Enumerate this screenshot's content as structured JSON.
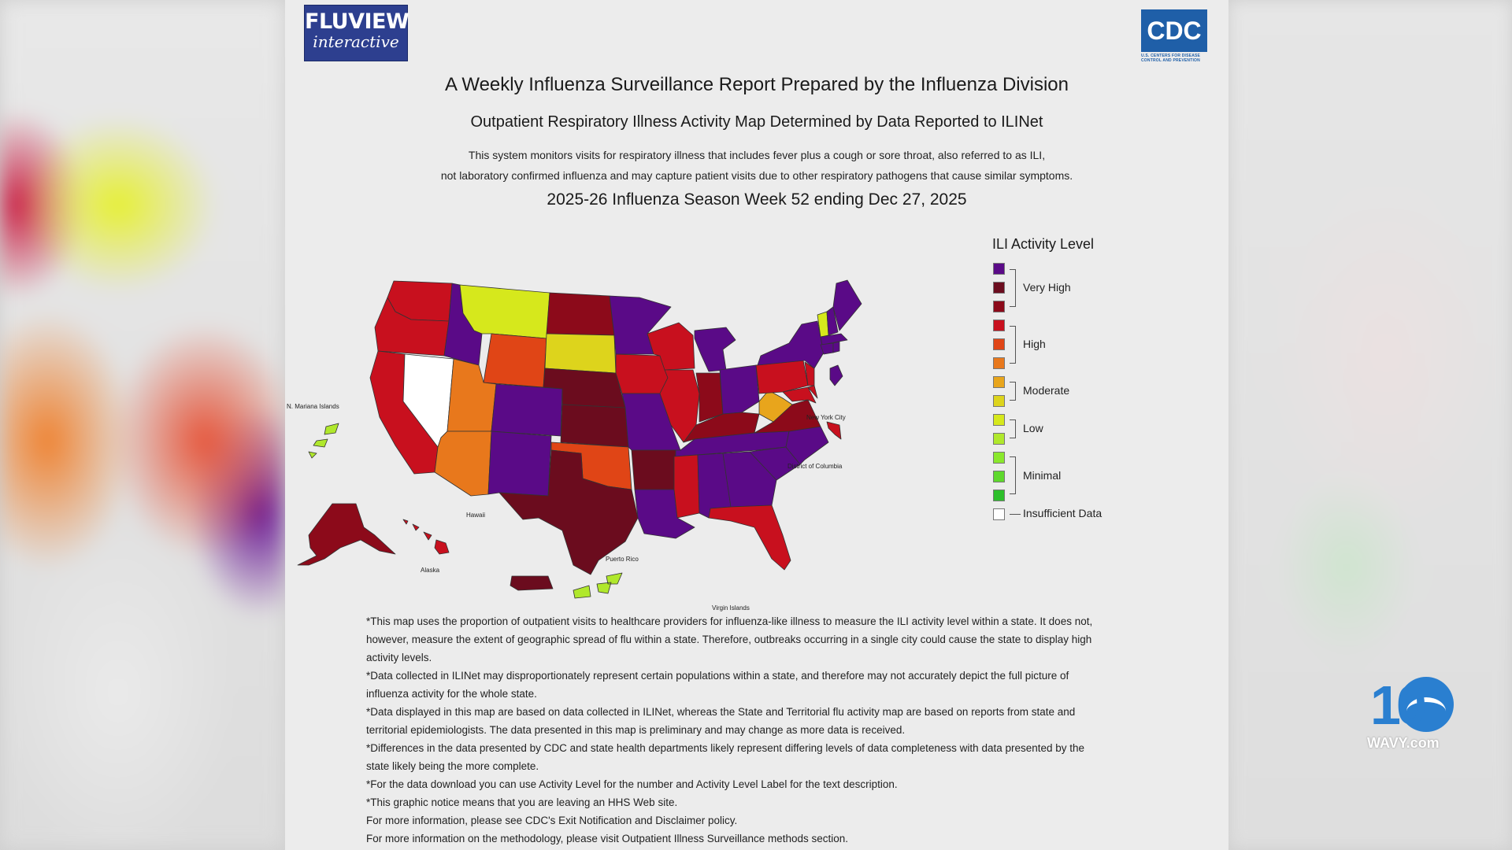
{
  "header": {
    "fluview_line1": "FLUVIEW",
    "fluview_line2": "interactive",
    "cdc_logo": "CDC",
    "cdc_sub": "U.S. CENTERS FOR DISEASE CONTROL AND PREVENTION"
  },
  "titles": {
    "main": "A Weekly Influenza Surveillance Report Prepared by the Influenza Division",
    "sub": "Outpatient Respiratory Illness Activity Map Determined by Data Reported to ILINet",
    "desc_line1": "This system monitors visits for respiratory illness that includes fever plus a cough or sore throat, also referred to as ILI,",
    "desc_line2": "not laboratory confirmed influenza and may capture patient visits due to other respiratory pathogens that cause similar symptoms.",
    "week": "2025-26 Influenza Season Week 52 ending Dec 27, 2025"
  },
  "map_labels": {
    "n_mariana": "N. Mariana Islands",
    "hawaii": "Hawaii",
    "alaska": "Alaska",
    "puerto_rico": "Puerto Rico",
    "virgin_islands": "Virgin Islands",
    "nyc": "New York City",
    "dc": "District of Columbia"
  },
  "legend": {
    "title": "ILI Activity Level",
    "colors": [
      "#5a0a87",
      "#6b0c1e",
      "#8c0a1a",
      "#c8101e",
      "#e04516",
      "#e8781c",
      "#e8a51c",
      "#ddd41c",
      "#d6e81c",
      "#b0e82c",
      "#8ae82c",
      "#5ed82c",
      "#2dbf2a"
    ],
    "insufficient_color": "#ffffff",
    "labels": {
      "very_high": "Very High",
      "high": "High",
      "moderate": "Moderate",
      "low": "Low",
      "minimal": "Minimal",
      "insufficient": "Insufficient Data"
    }
  },
  "notes": [
    "*This map uses the proportion of outpatient visits to healthcare providers for influenza-like illness to measure the ILI activity level within a state. It does not, however, measure the extent of geographic spread of flu within a state. Therefore, outbreaks occurring in a single city could cause the state to display high activity levels.",
    "*Data collected in ILINet may disproportionately represent certain populations within a state, and therefore may not accurately depict the full picture of influenza activity for the whole state.",
    "*Data displayed in this map are based on data collected in ILINet, whereas the State and Territorial flu activity map are based on reports from state and territorial epidemiologists. The data presented in this map is preliminary and may change as more data is received.",
    "*Differences in the data presented by CDC and state health departments likely represent differing levels of data completeness with data presented by the state likely being the more complete.",
    "*For the data download you can use Activity Level for the number and Activity Level Label for the text description.",
    "*This graphic notice means that you are leaving an HHS Web site.",
    "For more information, please see CDC's Exit Notification and Disclaimer policy.",
    "For more information on the methodology, please visit Outpatient Illness Surveillance methods section."
  ],
  "station": {
    "logo": "10",
    "site": "WAVY.com"
  }
}
